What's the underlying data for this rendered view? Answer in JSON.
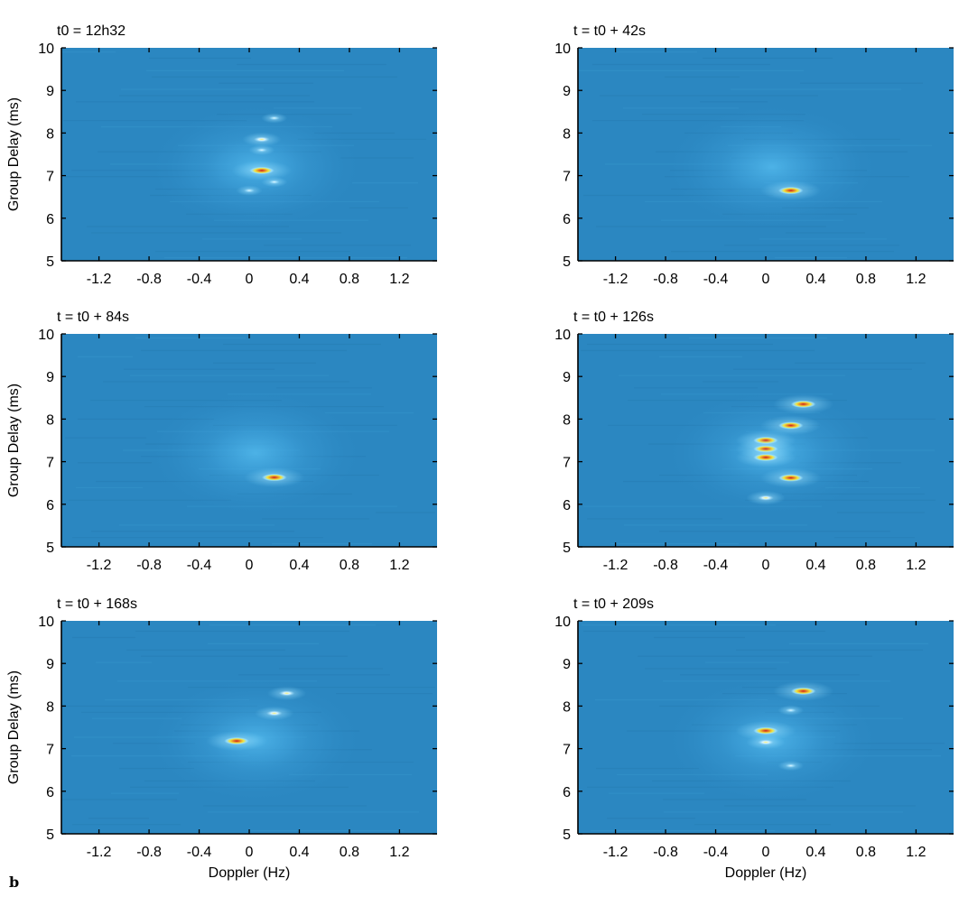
{
  "figure_label": "b",
  "colors": {
    "background": "#2b87c1",
    "haze": "#49b2ea",
    "glow": "#7fd6ff",
    "peak_yellow": "#f2e63c",
    "peak_red": "#c81d1d",
    "axis": "#000000"
  },
  "chart_data": [
    {
      "type": "heatmap",
      "title": "t0 = 12h32",
      "xlabel": "",
      "ylabel": "Group Delay (ms)",
      "xlim": [
        -1.5,
        1.5
      ],
      "ylim": [
        5,
        10
      ],
      "xticks": [
        -1.2,
        -0.8,
        -0.4,
        0,
        0.4,
        0.8,
        1.2
      ],
      "xticklabels": [
        "-1.2",
        "-0.8",
        "-0.4",
        "0",
        "0.4",
        "0.8",
        "1.2"
      ],
      "yticks": [
        5,
        6,
        7,
        8,
        9,
        10
      ],
      "yticklabels": [
        "5",
        "6",
        "7",
        "8",
        "9",
        "10"
      ],
      "peaks": [
        {
          "doppler": 0.1,
          "delay": 7.12,
          "level": 1.0
        },
        {
          "doppler": 0.1,
          "delay": 7.85,
          "level": 0.5
        },
        {
          "doppler": 0.1,
          "delay": 7.6,
          "level": 0.4
        },
        {
          "doppler": 0.2,
          "delay": 8.35,
          "level": 0.35
        },
        {
          "doppler": 0.2,
          "delay": 6.85,
          "level": 0.3
        },
        {
          "doppler": 0.0,
          "delay": 6.65,
          "level": 0.3
        }
      ]
    },
    {
      "type": "heatmap",
      "title": "t = t0 + 42s",
      "xlabel": "",
      "ylabel": "",
      "xlim": [
        -1.5,
        1.5
      ],
      "ylim": [
        5,
        10
      ],
      "xticks": [
        -1.2,
        -0.8,
        -0.4,
        0,
        0.4,
        0.8,
        1.2
      ],
      "xticklabels": [
        "-1.2",
        "-0.8",
        "-0.4",
        "0",
        "0.4",
        "0.8",
        "1.2"
      ],
      "yticks": [
        5,
        6,
        7,
        8,
        9,
        10
      ],
      "yticklabels": [
        "5",
        "6",
        "7",
        "8",
        "9",
        "10"
      ],
      "peaks": [
        {
          "doppler": 0.2,
          "delay": 6.65,
          "level": 0.95
        }
      ]
    },
    {
      "type": "heatmap",
      "title": "t = t0 + 84s",
      "xlabel": "",
      "ylabel": "Group Delay (ms)",
      "xlim": [
        -1.5,
        1.5
      ],
      "ylim": [
        5,
        10
      ],
      "xticks": [
        -1.2,
        -0.8,
        -0.4,
        0,
        0.4,
        0.8,
        1.2
      ],
      "xticklabels": [
        "-1.2",
        "-0.8",
        "-0.4",
        "0",
        "0.4",
        "0.8",
        "1.2"
      ],
      "yticks": [
        5,
        6,
        7,
        8,
        9,
        10
      ],
      "yticklabels": [
        "5",
        "6",
        "7",
        "8",
        "9",
        "10"
      ],
      "peaks": [
        {
          "doppler": 0.2,
          "delay": 6.63,
          "level": 0.95
        }
      ]
    },
    {
      "type": "heatmap",
      "title": "t = t0 + 126s",
      "xlabel": "",
      "ylabel": "",
      "xlim": [
        -1.5,
        1.5
      ],
      "ylim": [
        5,
        10
      ],
      "xticks": [
        -1.2,
        -0.8,
        -0.4,
        0,
        0.4,
        0.8,
        1.2
      ],
      "xticklabels": [
        "-1.2",
        "-0.8",
        "-0.4",
        "0",
        "0.4",
        "0.8",
        "1.2"
      ],
      "yticks": [
        5,
        6,
        7,
        8,
        9,
        10
      ],
      "yticklabels": [
        "5",
        "6",
        "7",
        "8",
        "9",
        "10"
      ],
      "peaks": [
        {
          "doppler": 0.3,
          "delay": 8.35,
          "level": 0.9
        },
        {
          "doppler": 0.2,
          "delay": 7.85,
          "level": 0.8
        },
        {
          "doppler": 0.0,
          "delay": 7.5,
          "level": 0.75
        },
        {
          "doppler": 0.0,
          "delay": 7.3,
          "level": 0.7
        },
        {
          "doppler": 0.0,
          "delay": 7.1,
          "level": 0.7
        },
        {
          "doppler": 0.2,
          "delay": 6.62,
          "level": 0.8
        },
        {
          "doppler": 0.0,
          "delay": 6.15,
          "level": 0.45
        }
      ]
    },
    {
      "type": "heatmap",
      "title": "t = t0 + 168s",
      "xlabel": "Doppler  (Hz)",
      "ylabel": "Group Delay (ms)",
      "xlim": [
        -1.5,
        1.5
      ],
      "ylim": [
        5,
        10
      ],
      "xticks": [
        -1.2,
        -0.8,
        -0.4,
        0,
        0.4,
        0.8,
        1.2
      ],
      "xticklabels": [
        "-1.2",
        "-0.8",
        "-0.4",
        "0",
        "0.4",
        "0.8",
        "1.2"
      ],
      "yticks": [
        5,
        6,
        7,
        8,
        9,
        10
      ],
      "yticklabels": [
        "5",
        "6",
        "7",
        "8",
        "9",
        "10"
      ],
      "peaks": [
        {
          "doppler": -0.1,
          "delay": 7.18,
          "level": 0.95
        },
        {
          "doppler": 0.3,
          "delay": 8.3,
          "level": 0.5
        },
        {
          "doppler": 0.2,
          "delay": 7.83,
          "level": 0.45
        }
      ]
    },
    {
      "type": "heatmap",
      "title": "t = t0 + 209s",
      "xlabel": "Doppler  (Hz)",
      "ylabel": "",
      "xlim": [
        -1.5,
        1.5
      ],
      "ylim": [
        5,
        10
      ],
      "xticks": [
        -1.2,
        -0.8,
        -0.4,
        0,
        0.4,
        0.8,
        1.2
      ],
      "xticklabels": [
        "-1.2",
        "-0.8",
        "-0.4",
        "0",
        "0.4",
        "0.8",
        "1.2"
      ],
      "yticks": [
        5,
        6,
        7,
        8,
        9,
        10
      ],
      "yticklabels": [
        "5",
        "6",
        "7",
        "8",
        "9",
        "10"
      ],
      "peaks": [
        {
          "doppler": 0.3,
          "delay": 8.35,
          "level": 0.9
        },
        {
          "doppler": 0.0,
          "delay": 7.42,
          "level": 0.85
        },
        {
          "doppler": 0.0,
          "delay": 7.15,
          "level": 0.5
        },
        {
          "doppler": 0.2,
          "delay": 7.9,
          "level": 0.35
        },
        {
          "doppler": 0.2,
          "delay": 6.6,
          "level": 0.35
        }
      ]
    }
  ]
}
